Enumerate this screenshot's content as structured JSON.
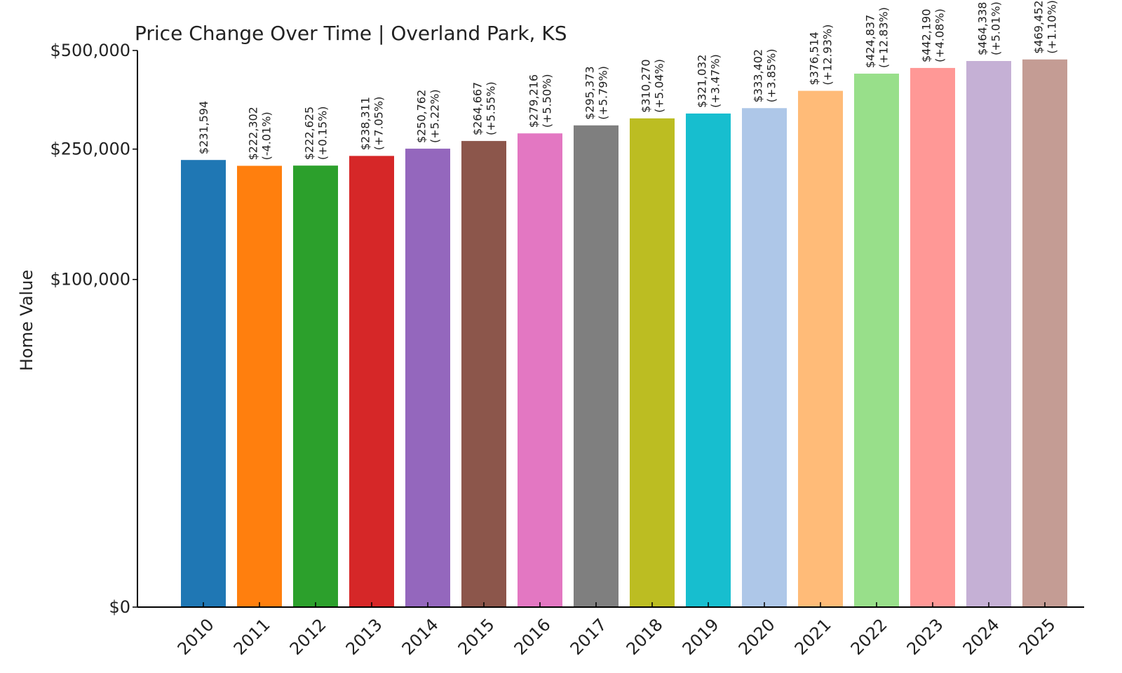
{
  "chart_data": {
    "type": "bar",
    "title": "Price Change Over Time | Overland Park, KS",
    "xlabel": "",
    "ylabel": "Home Value",
    "categories": [
      "2010",
      "2011",
      "2012",
      "2013",
      "2014",
      "2015",
      "2016",
      "2017",
      "2018",
      "2019",
      "2020",
      "2021",
      "2022",
      "2023",
      "2024",
      "2025"
    ],
    "values": [
      231594,
      222302,
      222625,
      238311,
      250762,
      264667,
      279216,
      295373,
      310270,
      321032,
      333402,
      376514,
      424837,
      442190,
      464338,
      469452
    ],
    "value_labels": [
      "$231,594",
      "$222,302",
      "$222,625",
      "$238,311",
      "$250,762",
      "$264,667",
      "$279,216",
      "$295,373",
      "$310,270",
      "$321,032",
      "$333,402",
      "$376,514",
      "$424,837",
      "$442,190",
      "$464,338",
      "$469,452"
    ],
    "change_labels": [
      "",
      "(-4.01%)",
      "(+0.15%)",
      "(+7.05%)",
      "(+5.22%)",
      "(+5.55%)",
      "(+5.50%)",
      "(+5.79%)",
      "(+5.04%)",
      "(+3.47%)",
      "(+3.85%)",
      "(+12.93%)",
      "(+12.83%)",
      "(+4.08%)",
      "(+5.01%)",
      "(+1.10%)"
    ],
    "colors": [
      "#1f77b4",
      "#ff7f0e",
      "#2ca02c",
      "#d62728",
      "#9467bd",
      "#8c564b",
      "#e377c2",
      "#7f7f7f",
      "#bcbd22",
      "#17becf",
      "#aec7e8",
      "#ffbb78",
      "#98df8a",
      "#ff9896",
      "#c5b0d5",
      "#c49c94"
    ],
    "y_scale": "symlog",
    "ylim": [
      0,
      500000
    ],
    "y_ticks": [
      0,
      100000,
      250000,
      500000
    ],
    "y_tick_labels": [
      "$0",
      "$100,000",
      "$250,000",
      "$500,000"
    ],
    "grid": false,
    "legend": "none"
  }
}
